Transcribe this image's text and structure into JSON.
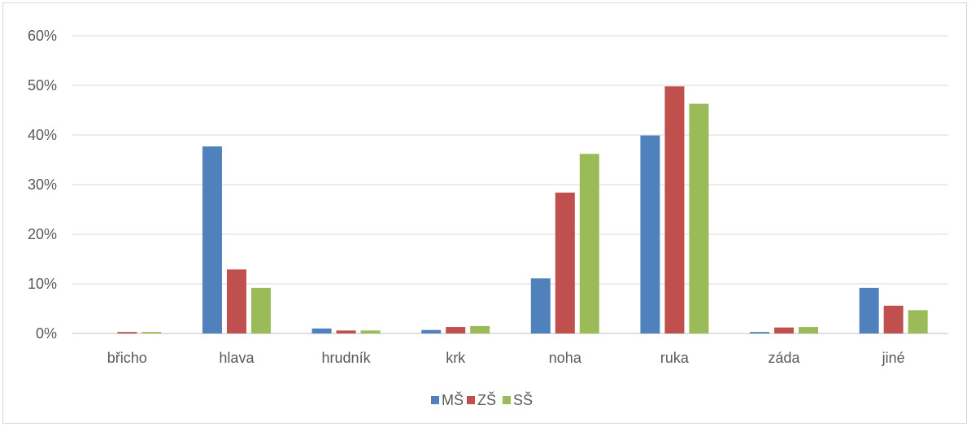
{
  "chart_data": {
    "type": "bar",
    "categories": [
      "břicho",
      "hlava",
      "hrudník",
      "krk",
      "noha",
      "ruka",
      "záda",
      "jiné"
    ],
    "series": [
      {
        "name": "MŠ",
        "color": "#4f81bd",
        "values": [
          0.0,
          37.7,
          1.0,
          0.7,
          11.1,
          39.9,
          0.3,
          9.2
        ]
      },
      {
        "name": "ZŠ",
        "color": "#c0504d",
        "values": [
          0.3,
          12.9,
          0.6,
          1.3,
          28.4,
          49.8,
          1.2,
          5.6
        ]
      },
      {
        "name": "SŠ",
        "color": "#9bbb59",
        "values": [
          0.3,
          9.2,
          0.6,
          1.5,
          36.2,
          46.3,
          1.3,
          4.7
        ]
      }
    ],
    "ylim": [
      0,
      60
    ],
    "yticks": [
      0,
      10,
      20,
      30,
      40,
      50,
      60
    ],
    "ytick_labels": [
      "0%",
      "10%",
      "20%",
      "30%",
      "40%",
      "50%",
      "60%"
    ],
    "grid": true,
    "legend_position": "bottom",
    "title": "",
    "xlabel": "",
    "ylabel": ""
  }
}
